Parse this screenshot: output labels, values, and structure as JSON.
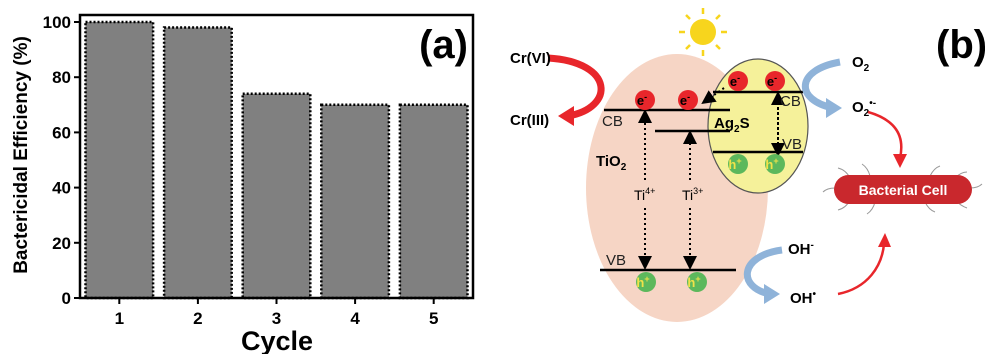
{
  "panel_a": {
    "label": "(a)"
  },
  "chart_data": {
    "type": "bar",
    "title": "",
    "categories": [
      "1",
      "2",
      "3",
      "4",
      "5"
    ],
    "values": [
      100,
      98,
      74,
      70,
      70
    ],
    "xlabel": "Cycle",
    "ylabel": "Bactericidal Efficiency (%)",
    "ylim": [
      0,
      100
    ],
    "yticks": [
      0,
      20,
      40,
      60,
      80,
      100
    ],
    "grid": false,
    "bar_color": "#808080",
    "bar_border_color": "#000000"
  },
  "panel_b": {
    "label": "(b)",
    "cr_vi": "Cr(VI)",
    "cr_iii": "Cr(III)",
    "tio2_cb": "CB",
    "tio2_vb": "VB",
    "tio2": "TiO",
    "tio2_sub": "2",
    "ti4": "Ti",
    "ti4_sup": "4+",
    "ti3": "Ti",
    "ti3_sup": "3+",
    "ag2s_ag": "Ag",
    "ag2s_sub": "2",
    "ag2s_s": "S",
    "ag2s_cb": "CB",
    "ag2s_vb": "VB",
    "electron": "e",
    "electron_sup": "-",
    "hole": "h",
    "hole_sup": "+",
    "o2": "O",
    "o2_sub": "2",
    "o2_radical": "O",
    "o2_radical_sub": "2",
    "o2_radical_sup": "•-",
    "oh_minus": "OH",
    "oh_minus_sup": "-",
    "oh_radical": "OH",
    "oh_radical_sup": "•",
    "bacterial_cell": "Bacterial Cell",
    "colors": {
      "tio2_fill": "#f6d5c5",
      "ag2s_fill": "#f5f19a",
      "electron": "#e8262b",
      "hole": "#5cb85c",
      "red_arrow": "#e8262b",
      "blue_arrow": "#8fb3d9",
      "cell": "#c9282d",
      "sun": "#f7d51d"
    }
  }
}
